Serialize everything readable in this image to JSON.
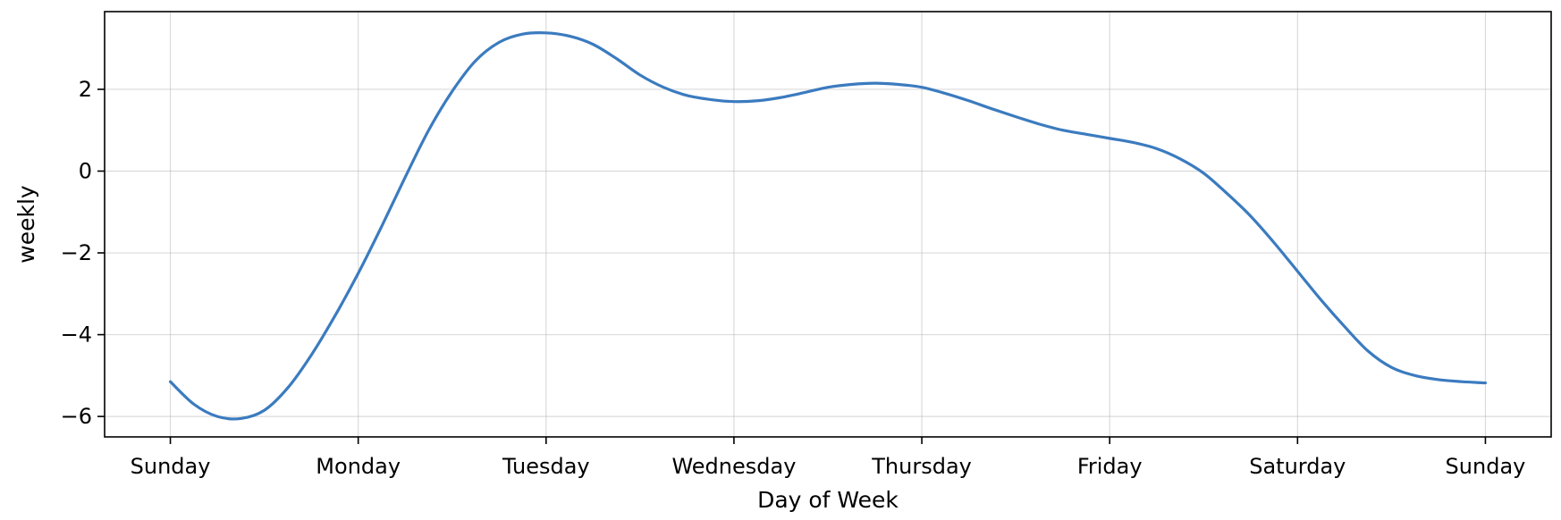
{
  "chart_data": {
    "type": "line",
    "xlabel": "Day of Week",
    "ylabel": "weekly",
    "x_tick_labels": [
      "Sunday",
      "Monday",
      "Tuesday",
      "Wednesday",
      "Thursday",
      "Friday",
      "Saturday",
      "Sunday"
    ],
    "y_ticks": [
      -6,
      -4,
      -2,
      0,
      2
    ],
    "xlim": [
      -0.35,
      7.35
    ],
    "ylim": [
      -6.5,
      3.9
    ],
    "grid": true,
    "line_color": "#3b7bbf",
    "series": [
      {
        "x": [
          0,
          0.125,
          0.25,
          0.375,
          0.5,
          0.625,
          0.75,
          0.875,
          1.0,
          1.125,
          1.25,
          1.375,
          1.5,
          1.625,
          1.75,
          1.875,
          2.0,
          2.125,
          2.25,
          2.375,
          2.5,
          2.625,
          2.75,
          2.875,
          3.0,
          3.125,
          3.25,
          3.375,
          3.5,
          3.625,
          3.75,
          3.875,
          4.0,
          4.125,
          4.25,
          4.375,
          4.5,
          4.625,
          4.75,
          4.875,
          5.0,
          5.125,
          5.25,
          5.375,
          5.5,
          5.625,
          5.75,
          5.875,
          6.0,
          6.125,
          6.25,
          6.375,
          6.5,
          6.625,
          6.75,
          6.875,
          7.0
        ],
        "y": [
          -5.15,
          -5.7,
          -6.0,
          -6.05,
          -5.85,
          -5.3,
          -4.5,
          -3.55,
          -2.5,
          -1.35,
          -0.15,
          1.0,
          1.95,
          2.7,
          3.15,
          3.35,
          3.38,
          3.3,
          3.1,
          2.75,
          2.35,
          2.05,
          1.85,
          1.75,
          1.7,
          1.72,
          1.8,
          1.92,
          2.05,
          2.12,
          2.15,
          2.12,
          2.05,
          1.9,
          1.72,
          1.52,
          1.33,
          1.15,
          1.0,
          0.9,
          0.8,
          0.7,
          0.55,
          0.3,
          -0.05,
          -0.55,
          -1.1,
          -1.75,
          -2.45,
          -3.15,
          -3.8,
          -4.4,
          -4.8,
          -5.0,
          -5.1,
          -5.15,
          -5.18
        ]
      }
    ]
  }
}
